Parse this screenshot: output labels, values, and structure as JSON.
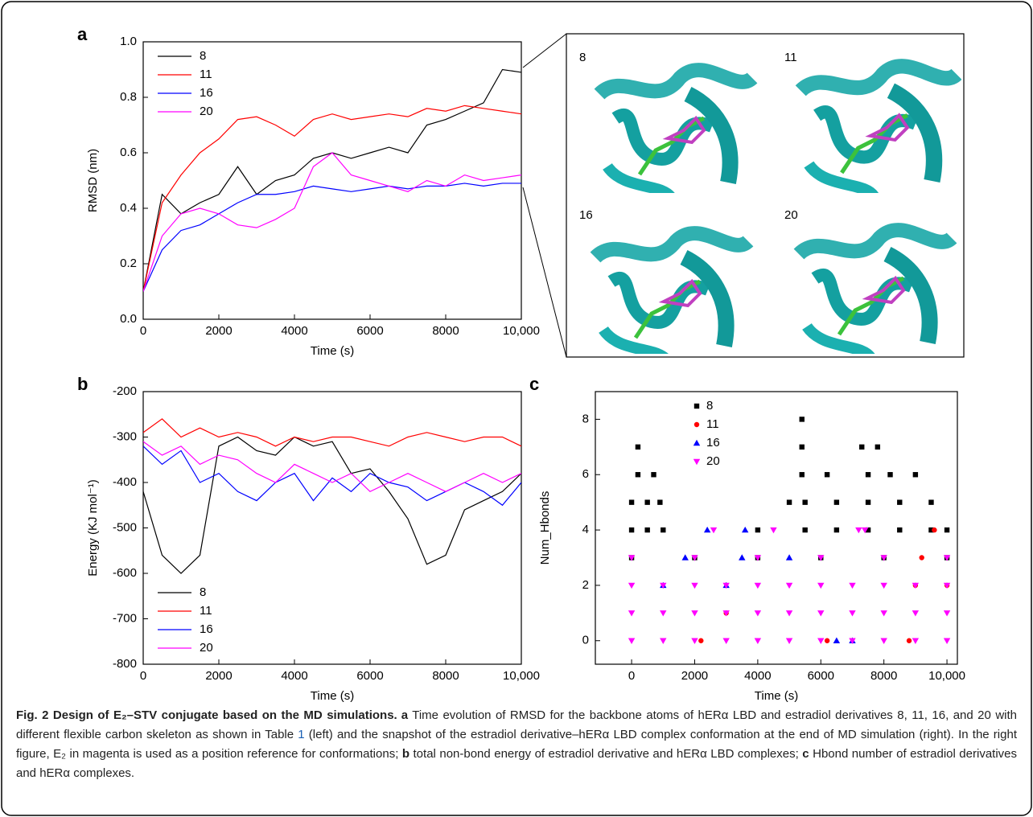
{
  "chart_data": [
    {
      "type": "line",
      "panel_label": "a",
      "x_label": "Time (s)",
      "y_label": "RMSD (nm)",
      "legend": "upper left",
      "x": [
        0,
        500,
        1000,
        1500,
        2000,
        2500,
        3000,
        3500,
        4000,
        4500,
        5000,
        5500,
        6000,
        6500,
        7000,
        7500,
        8000,
        8500,
        9000,
        9500,
        10000
      ],
      "series": [
        {
          "name": "8",
          "color": "#000000",
          "values": [
            0.1,
            0.45,
            0.38,
            0.42,
            0.45,
            0.55,
            0.45,
            0.5,
            0.52,
            0.58,
            0.6,
            0.58,
            0.6,
            0.62,
            0.6,
            0.7,
            0.72,
            0.75,
            0.78,
            0.9,
            0.89
          ]
        },
        {
          "name": "11",
          "color": "#ff0000",
          "values": [
            0.1,
            0.42,
            0.52,
            0.6,
            0.65,
            0.72,
            0.73,
            0.7,
            0.66,
            0.72,
            0.74,
            0.72,
            0.73,
            0.74,
            0.73,
            0.76,
            0.75,
            0.77,
            0.76,
            0.75,
            0.74
          ]
        },
        {
          "name": "16",
          "color": "#0000ff",
          "values": [
            0.1,
            0.25,
            0.32,
            0.34,
            0.38,
            0.42,
            0.45,
            0.45,
            0.46,
            0.48,
            0.47,
            0.46,
            0.47,
            0.48,
            0.47,
            0.48,
            0.48,
            0.49,
            0.48,
            0.49,
            0.49
          ]
        },
        {
          "name": "20",
          "color": "#ff00ff",
          "values": [
            0.1,
            0.3,
            0.38,
            0.4,
            0.38,
            0.34,
            0.33,
            0.36,
            0.4,
            0.55,
            0.6,
            0.52,
            0.5,
            0.48,
            0.46,
            0.5,
            0.48,
            0.52,
            0.5,
            0.51,
            0.52
          ]
        }
      ],
      "xlim": [
        0,
        10000
      ],
      "ylim": [
        0,
        1
      ],
      "xticks": [
        0,
        2000,
        4000,
        6000,
        8000,
        {
          "value": 10000,
          "label": "10,000"
        }
      ],
      "yticks": [
        {
          "value": 0,
          "label": "0.0"
        },
        0.2,
        0.4,
        0.6,
        0.8,
        {
          "value": 1,
          "label": "1.0"
        }
      ]
    },
    {
      "type": "line",
      "panel_label": "b",
      "x_label": "Time (s)",
      "y_label": "Energy (KJ mol⁻¹)",
      "legend": "lower left",
      "x": [
        0,
        500,
        1000,
        1500,
        2000,
        2500,
        3000,
        3500,
        4000,
        4500,
        5000,
        5500,
        6000,
        6500,
        7000,
        7500,
        8000,
        8500,
        9000,
        9500,
        10000
      ],
      "series": [
        {
          "name": "8",
          "color": "#000000",
          "values": [
            -420,
            -560,
            -600,
            -560,
            -320,
            -300,
            -330,
            -340,
            -300,
            -320,
            -310,
            -380,
            -370,
            -420,
            -480,
            -580,
            -560,
            -460,
            -440,
            -420,
            -380
          ]
        },
        {
          "name": "11",
          "color": "#ff0000",
          "values": [
            -290,
            -260,
            -300,
            -280,
            -300,
            -290,
            -300,
            -320,
            -300,
            -310,
            -300,
            -300,
            -310,
            -320,
            -300,
            -290,
            -300,
            -310,
            -300,
            -300,
            -320
          ]
        },
        {
          "name": "16",
          "color": "#0000ff",
          "values": [
            -320,
            -360,
            -330,
            -400,
            -380,
            -420,
            -440,
            -400,
            -380,
            -440,
            -390,
            -420,
            -380,
            -400,
            -410,
            -440,
            -420,
            -400,
            -420,
            -450,
            -400
          ]
        },
        {
          "name": "20",
          "color": "#ff00ff",
          "values": [
            -310,
            -340,
            -320,
            -360,
            -340,
            -350,
            -380,
            -400,
            -360,
            -380,
            -400,
            -380,
            -420,
            -400,
            -380,
            -400,
            -420,
            -400,
            -380,
            -400,
            -380
          ]
        }
      ],
      "xlim": [
        0,
        10000
      ],
      "ylim": [
        -800,
        -200
      ],
      "xticks": [
        0,
        2000,
        4000,
        6000,
        8000,
        {
          "value": 10000,
          "label": "10,000"
        }
      ],
      "yticks": [
        -800,
        -700,
        -600,
        -500,
        -400,
        -300,
        -200
      ]
    },
    {
      "type": "scatter",
      "panel_label": "c",
      "x_label": "Time (s)",
      "y_label": "Num_Hbonds",
      "legend": "upper center",
      "series": [
        {
          "name": "8",
          "color": "#000000",
          "marker": "square",
          "x": [
            0,
            2000,
            4000,
            6000,
            8000,
            10000,
            0,
            500,
            1000,
            4000,
            5500,
            6500,
            7500,
            8500,
            9500,
            10000,
            0,
            500,
            900,
            5000,
            5500,
            6500,
            7500,
            8500,
            9500,
            200,
            700,
            5400,
            6200,
            7500,
            8200,
            9000,
            200,
            5400,
            7300,
            7800,
            5400
          ],
          "y": [
            3,
            3,
            3,
            3,
            3,
            3,
            4,
            4,
            4,
            4,
            4,
            4,
            4,
            4,
            4,
            4,
            5,
            5,
            5,
            5,
            5,
            5,
            5,
            5,
            5,
            6,
            6,
            6,
            6,
            6,
            6,
            6,
            7,
            7,
            7,
            7,
            8
          ]
        },
        {
          "name": "11",
          "color": "#ff0000",
          "marker": "circle",
          "x": [
            2200,
            6200,
            8800,
            3000,
            9000,
            10000,
            9200,
            9600
          ],
          "y": [
            0,
            0,
            0,
            1,
            2,
            2,
            3,
            4
          ]
        },
        {
          "name": "16",
          "color": "#0000ff",
          "marker": "triangle-up",
          "x": [
            6500,
            7000,
            1000,
            3000,
            1700,
            3500,
            5000,
            2400,
            3600
          ],
          "y": [
            0,
            0,
            2,
            2,
            3,
            3,
            3,
            4,
            4
          ]
        },
        {
          "name": "20",
          "color": "#ff00ff",
          "marker": "triangle-down",
          "x": [
            0,
            1000,
            2000,
            3000,
            4000,
            5000,
            6000,
            7000,
            8000,
            9000,
            10000,
            0,
            1000,
            2000,
            3000,
            4000,
            5000,
            6000,
            7000,
            8000,
            9000,
            10000,
            0,
            1000,
            2000,
            3000,
            4000,
            5000,
            6000,
            7000,
            8000,
            9000,
            10000,
            0,
            2000,
            4000,
            6000,
            8000,
            10000,
            2600,
            4500,
            7200,
            7400
          ],
          "y": [
            0,
            0,
            0,
            0,
            0,
            0,
            0,
            0,
            0,
            0,
            0,
            1,
            1,
            1,
            1,
            1,
            1,
            1,
            1,
            1,
            1,
            1,
            2,
            2,
            2,
            2,
            2,
            2,
            2,
            2,
            2,
            2,
            2,
            3,
            3,
            3,
            3,
            3,
            3,
            4,
            4,
            4,
            4
          ]
        }
      ],
      "xlim": [
        -1150,
        10330
      ],
      "ylim": [
        -0.85,
        9
      ],
      "xticks": [
        0,
        2000,
        4000,
        6000,
        8000,
        {
          "value": 10000,
          "label": "10,000"
        }
      ],
      "yticks": [
        0,
        2,
        4,
        6,
        8
      ]
    }
  ],
  "snapshots": {
    "labels": [
      "8",
      "11",
      "16",
      "20"
    ]
  },
  "caption": [
    "Fig. 2 Design of E₂–STV conjugate based on the MD simulations.",
    "a",
    " Time evolution of RMSD for the backbone atoms of hERα LBD and estradiol derivatives 8, 11, 16, and 20 with different flexible carbon skeleton as shown in Table ",
    "1",
    " (left) and the snapshot of the estradiol derivative–hERα LBD complex conformation at the end of MD simulation (right). In the right figure, E₂ in magenta is used as a position reference for conformations; ",
    "b",
    " total non-bond energy of estradiol derivative and hERα LBD complexes; ",
    "c",
    " Hbond number of estradiol derivatives and hERα complexes."
  ]
}
